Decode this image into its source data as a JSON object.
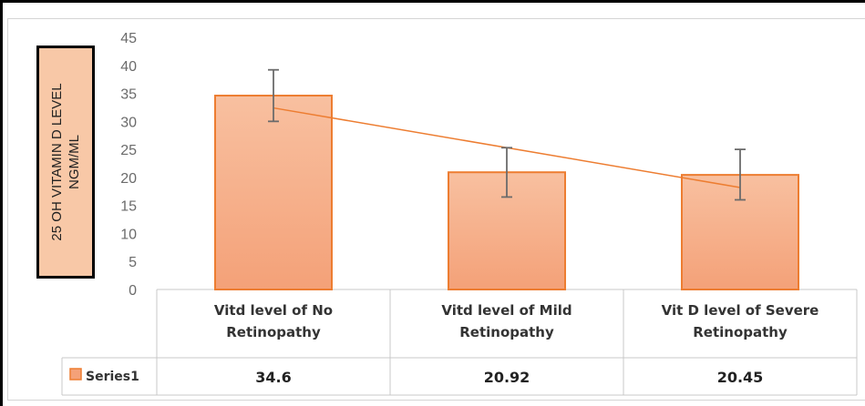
{
  "chart_data": {
    "type": "bar",
    "title": "",
    "ylabel": "25 OH VITAMIN D LEVEL NGM/ML",
    "ylabel_lines": [
      "25 OH VITAMIN D LEVEL",
      "NGM/ML"
    ],
    "xlabel": "",
    "ylim": [
      0,
      45
    ],
    "yticks": [
      0,
      5,
      10,
      15,
      20,
      25,
      30,
      35,
      40,
      45
    ],
    "grid": false,
    "categories": [
      "Vitd level of No Retinopathy",
      "Vitd level of Mild Retinopathy",
      "Vit D level of Severe Retinopathy"
    ],
    "category_lines": [
      [
        "Vitd level of No",
        "Retinopathy"
      ],
      [
        "Vitd level of Mild",
        "Retinopathy"
      ],
      [
        "Vit D level of Severe",
        "Retinopathy"
      ]
    ],
    "series": [
      {
        "name": "Series1",
        "values": [
          34.6,
          20.92,
          20.45
        ]
      }
    ],
    "value_labels": [
      "34.6",
      "20.92",
      "20.45"
    ],
    "error_bars": [
      [
        30.0,
        39.2
      ],
      [
        16.5,
        25.3
      ],
      [
        16.0,
        25.0
      ]
    ],
    "trendline": {
      "type": "linear",
      "values": [
        32.4,
        25.3,
        18.2
      ]
    },
    "data_table": true,
    "colors": {
      "bar_fill_top": "#f8c0a0",
      "bar_fill_bottom": "#f4a178",
      "bar_border": "#ed7d31",
      "trendline": "#ed7d31",
      "error_bar": "#6b6b6b",
      "axis_title_box": "#f8c8a7"
    }
  }
}
